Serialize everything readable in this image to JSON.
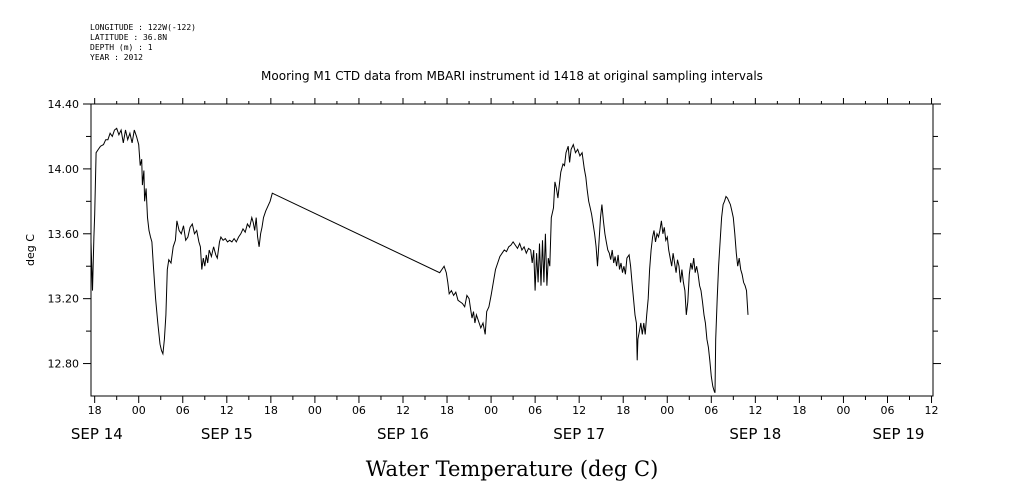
{
  "header": {
    "lines": [
      "LONGITUDE : 122W(-122)",
      "LATITUDE : 36.8N",
      "DEPTH (m) : 1",
      "YEAR : 2012"
    ]
  },
  "chart_data": {
    "type": "line",
    "title": "Mooring M1 CTD data from MBARI instrument id 1418 at original sampling intervals",
    "xlabel": "Water Temperature (deg C)",
    "ylabel": "deg C",
    "ylim": [
      12.6,
      14.4
    ],
    "xlim": [
      17.5,
      132.2
    ],
    "x_unit": "hours from SEP 14 00:00",
    "yticks": [
      12.8,
      13.2,
      13.6,
      14.0,
      14.4
    ],
    "ytick_labels": [
      "12.80",
      "13.20",
      "13.60",
      "14.00",
      "14.40"
    ],
    "xticks": [
      {
        "x": 18,
        "label": "18"
      },
      {
        "x": 24,
        "label": "00"
      },
      {
        "x": 30,
        "label": "06"
      },
      {
        "x": 36,
        "label": "12"
      },
      {
        "x": 42,
        "label": "18"
      },
      {
        "x": 48,
        "label": "00"
      },
      {
        "x": 54,
        "label": "06"
      },
      {
        "x": 60,
        "label": "12"
      },
      {
        "x": 66,
        "label": "18"
      },
      {
        "x": 72,
        "label": "00"
      },
      {
        "x": 78,
        "label": "06"
      },
      {
        "x": 84,
        "label": "12"
      },
      {
        "x": 90,
        "label": "18"
      },
      {
        "x": 96,
        "label": "00"
      },
      {
        "x": 102,
        "label": "06"
      },
      {
        "x": 108,
        "label": "12"
      },
      {
        "x": 114,
        "label": "18"
      },
      {
        "x": 120,
        "label": "00"
      },
      {
        "x": 126,
        "label": "06"
      },
      {
        "x": 132,
        "label": "12"
      }
    ],
    "day_labels": [
      {
        "x": 18.3,
        "label": "SEP 14"
      },
      {
        "x": 36,
        "label": "SEP 15"
      },
      {
        "x": 60,
        "label": "SEP 16"
      },
      {
        "x": 84,
        "label": "SEP 17"
      },
      {
        "x": 108,
        "label": "SEP 18"
      },
      {
        "x": 127.5,
        "label": "SEP 19"
      }
    ],
    "grid": false,
    "series": [
      {
        "color": "#000000",
        "points": [
          [
            17.5,
            13.55
          ],
          [
            17.7,
            13.25
          ],
          [
            17.9,
            13.58
          ],
          [
            18.0,
            13.72
          ],
          [
            18.2,
            14.1
          ],
          [
            18.5,
            14.12
          ],
          [
            18.8,
            14.14
          ],
          [
            19.2,
            14.15
          ],
          [
            19.5,
            14.18
          ],
          [
            19.8,
            14.18
          ],
          [
            20.1,
            14.22
          ],
          [
            20.4,
            14.2
          ],
          [
            20.7,
            14.24
          ],
          [
            21.0,
            14.25
          ],
          [
            21.3,
            14.21
          ],
          [
            21.6,
            14.24
          ],
          [
            21.9,
            14.16
          ],
          [
            22.2,
            14.24
          ],
          [
            22.5,
            14.18
          ],
          [
            22.8,
            14.22
          ],
          [
            23.1,
            14.16
          ],
          [
            23.4,
            14.24
          ],
          [
            23.7,
            14.2
          ],
          [
            24.0,
            14.15
          ],
          [
            24.2,
            14.02
          ],
          [
            24.4,
            14.06
          ],
          [
            24.5,
            13.9
          ],
          [
            24.7,
            13.99
          ],
          [
            24.8,
            13.8
          ],
          [
            25.0,
            13.88
          ],
          [
            25.2,
            13.7
          ],
          [
            25.4,
            13.62
          ],
          [
            25.6,
            13.58
          ],
          [
            25.8,
            13.55
          ],
          [
            26.0,
            13.4
          ],
          [
            26.3,
            13.2
          ],
          [
            26.6,
            13.05
          ],
          [
            26.9,
            12.92
          ],
          [
            27.1,
            12.88
          ],
          [
            27.3,
            12.86
          ],
          [
            27.5,
            12.95
          ],
          [
            27.7,
            13.1
          ],
          [
            27.9,
            13.38
          ],
          [
            28.1,
            13.44
          ],
          [
            28.4,
            13.42
          ],
          [
            28.7,
            13.52
          ],
          [
            29.0,
            13.56
          ],
          [
            29.2,
            13.68
          ],
          [
            29.5,
            13.62
          ],
          [
            29.8,
            13.6
          ],
          [
            30.1,
            13.65
          ],
          [
            30.4,
            13.56
          ],
          [
            30.7,
            13.58
          ],
          [
            31.0,
            13.64
          ],
          [
            31.3,
            13.66
          ],
          [
            31.6,
            13.6
          ],
          [
            31.9,
            13.62
          ],
          [
            32.2,
            13.55
          ],
          [
            32.4,
            13.52
          ],
          [
            32.6,
            13.38
          ],
          [
            32.8,
            13.45
          ],
          [
            33.0,
            13.4
          ],
          [
            33.2,
            13.47
          ],
          [
            33.4,
            13.42
          ],
          [
            33.6,
            13.5
          ],
          [
            33.9,
            13.46
          ],
          [
            34.2,
            13.52
          ],
          [
            34.5,
            13.47
          ],
          [
            34.7,
            13.45
          ],
          [
            35.0,
            13.55
          ],
          [
            35.2,
            13.58
          ],
          [
            35.5,
            13.56
          ],
          [
            35.8,
            13.57
          ],
          [
            36.1,
            13.55
          ],
          [
            36.4,
            13.56
          ],
          [
            36.7,
            13.55
          ],
          [
            37.0,
            13.57
          ],
          [
            37.3,
            13.55
          ],
          [
            37.6,
            13.58
          ],
          [
            37.9,
            13.6
          ],
          [
            38.2,
            13.63
          ],
          [
            38.5,
            13.61
          ],
          [
            38.8,
            13.66
          ],
          [
            39.1,
            13.64
          ],
          [
            39.4,
            13.7
          ],
          [
            39.6,
            13.67
          ],
          [
            39.8,
            13.62
          ],
          [
            40.0,
            13.7
          ],
          [
            40.2,
            13.58
          ],
          [
            40.4,
            13.52
          ],
          [
            40.6,
            13.6
          ],
          [
            40.8,
            13.64
          ],
          [
            41.0,
            13.7
          ],
          [
            41.3,
            13.74
          ],
          [
            41.6,
            13.77
          ],
          [
            41.9,
            13.8
          ],
          [
            42.2,
            13.85
          ],
          [
            65.0,
            13.36
          ],
          [
            65.3,
            13.38
          ],
          [
            65.6,
            13.4
          ],
          [
            65.9,
            13.36
          ],
          [
            66.1,
            13.3
          ],
          [
            66.3,
            13.23
          ],
          [
            66.6,
            13.25
          ],
          [
            66.9,
            13.22
          ],
          [
            67.2,
            13.24
          ],
          [
            67.5,
            13.19
          ],
          [
            67.8,
            13.18
          ],
          [
            68.1,
            13.17
          ],
          [
            68.4,
            13.15
          ],
          [
            68.7,
            13.22
          ],
          [
            69.0,
            13.2
          ],
          [
            69.2,
            13.14
          ],
          [
            69.4,
            13.08
          ],
          [
            69.6,
            13.12
          ],
          [
            69.8,
            13.05
          ],
          [
            70.0,
            13.1
          ],
          [
            70.3,
            13.06
          ],
          [
            70.6,
            13.02
          ],
          [
            70.9,
            13.05
          ],
          [
            71.2,
            12.98
          ],
          [
            71.4,
            13.12
          ],
          [
            71.7,
            13.15
          ],
          [
            72.0,
            13.22
          ],
          [
            72.3,
            13.3
          ],
          [
            72.6,
            13.38
          ],
          [
            72.9,
            13.42
          ],
          [
            73.2,
            13.46
          ],
          [
            73.5,
            13.48
          ],
          [
            73.8,
            13.5
          ],
          [
            74.1,
            13.49
          ],
          [
            74.4,
            13.52
          ],
          [
            74.7,
            13.53
          ],
          [
            75.0,
            13.55
          ],
          [
            75.3,
            13.53
          ],
          [
            75.6,
            13.51
          ],
          [
            75.9,
            13.54
          ],
          [
            76.2,
            13.5
          ],
          [
            76.5,
            13.52
          ],
          [
            76.8,
            13.48
          ],
          [
            77.1,
            13.51
          ],
          [
            77.4,
            13.5
          ],
          [
            77.6,
            13.42
          ],
          [
            77.8,
            13.5
          ],
          [
            78.0,
            13.25
          ],
          [
            78.2,
            13.48
          ],
          [
            78.4,
            13.3
          ],
          [
            78.6,
            13.54
          ],
          [
            78.8,
            13.28
          ],
          [
            79.0,
            13.56
          ],
          [
            79.2,
            13.3
          ],
          [
            79.4,
            13.6
          ],
          [
            79.6,
            13.28
          ],
          [
            79.8,
            13.45
          ],
          [
            80.0,
            13.4
          ],
          [
            80.2,
            13.7
          ],
          [
            80.5,
            13.76
          ],
          [
            80.7,
            13.92
          ],
          [
            80.9,
            13.88
          ],
          [
            81.1,
            13.82
          ],
          [
            81.3,
            13.9
          ],
          [
            81.5,
            13.98
          ],
          [
            81.8,
            14.03
          ],
          [
            82.0,
            14.02
          ],
          [
            82.2,
            14.1
          ],
          [
            82.5,
            14.14
          ],
          [
            82.7,
            14.04
          ],
          [
            82.9,
            14.12
          ],
          [
            83.2,
            14.15
          ],
          [
            83.5,
            14.1
          ],
          [
            83.8,
            14.12
          ],
          [
            84.1,
            14.08
          ],
          [
            84.4,
            14.1
          ],
          [
            84.7,
            14.0
          ],
          [
            84.9,
            13.95
          ],
          [
            85.1,
            13.87
          ],
          [
            85.3,
            13.8
          ],
          [
            85.5,
            13.76
          ],
          [
            85.7,
            13.72
          ],
          [
            85.9,
            13.66
          ],
          [
            86.1,
            13.6
          ],
          [
            86.3,
            13.52
          ],
          [
            86.5,
            13.4
          ],
          [
            86.7,
            13.55
          ],
          [
            86.9,
            13.7
          ],
          [
            87.1,
            13.78
          ],
          [
            87.3,
            13.68
          ],
          [
            87.5,
            13.6
          ],
          [
            87.7,
            13.55
          ],
          [
            87.9,
            13.5
          ],
          [
            88.1,
            13.48
          ],
          [
            88.3,
            13.44
          ],
          [
            88.5,
            13.5
          ],
          [
            88.7,
            13.42
          ],
          [
            88.9,
            13.46
          ],
          [
            89.1,
            13.4
          ],
          [
            89.3,
            13.47
          ],
          [
            89.5,
            13.38
          ],
          [
            89.7,
            13.42
          ],
          [
            89.9,
            13.36
          ],
          [
            90.1,
            13.4
          ],
          [
            90.3,
            13.35
          ],
          [
            90.5,
            13.45
          ],
          [
            90.8,
            13.47
          ],
          [
            91.0,
            13.4
          ],
          [
            91.2,
            13.3
          ],
          [
            91.4,
            13.2
          ],
          [
            91.6,
            13.1
          ],
          [
            91.8,
            13.05
          ],
          [
            91.9,
            12.82
          ],
          [
            92.0,
            12.95
          ],
          [
            92.2,
            13.0
          ],
          [
            92.4,
            13.05
          ],
          [
            92.6,
            12.98
          ],
          [
            92.8,
            13.05
          ],
          [
            93.0,
            12.98
          ],
          [
            93.2,
            13.1
          ],
          [
            93.4,
            13.2
          ],
          [
            93.6,
            13.38
          ],
          [
            93.8,
            13.5
          ],
          [
            94.0,
            13.58
          ],
          [
            94.2,
            13.62
          ],
          [
            94.4,
            13.55
          ],
          [
            94.6,
            13.6
          ],
          [
            94.8,
            13.58
          ],
          [
            95.0,
            13.62
          ],
          [
            95.2,
            13.68
          ],
          [
            95.4,
            13.6
          ],
          [
            95.6,
            13.64
          ],
          [
            95.8,
            13.56
          ],
          [
            96.0,
            13.58
          ],
          [
            96.2,
            13.5
          ],
          [
            96.4,
            13.45
          ],
          [
            96.6,
            13.4
          ],
          [
            96.8,
            13.48
          ],
          [
            97.0,
            13.42
          ],
          [
            97.2,
            13.36
          ],
          [
            97.4,
            13.44
          ],
          [
            97.6,
            13.4
          ],
          [
            97.8,
            13.3
          ],
          [
            98.0,
            13.38
          ],
          [
            98.2,
            13.3
          ],
          [
            98.4,
            13.25
          ],
          [
            98.6,
            13.1
          ],
          [
            98.8,
            13.18
          ],
          [
            99.0,
            13.35
          ],
          [
            99.2,
            13.42
          ],
          [
            99.4,
            13.38
          ],
          [
            99.6,
            13.45
          ],
          [
            99.8,
            13.36
          ],
          [
            100.0,
            13.4
          ],
          [
            100.2,
            13.35
          ],
          [
            100.4,
            13.28
          ],
          [
            100.6,
            13.25
          ],
          [
            100.8,
            13.18
          ],
          [
            101.0,
            13.1
          ],
          [
            101.2,
            13.05
          ],
          [
            101.4,
            12.95
          ],
          [
            101.6,
            12.9
          ],
          [
            101.8,
            12.82
          ],
          [
            102.0,
            12.72
          ],
          [
            102.2,
            12.66
          ],
          [
            102.4,
            12.63
          ],
          [
            102.5,
            12.62
          ],
          [
            102.6,
            12.95
          ],
          [
            102.8,
            13.2
          ],
          [
            103.0,
            13.4
          ],
          [
            103.2,
            13.55
          ],
          [
            103.4,
            13.7
          ],
          [
            103.6,
            13.78
          ],
          [
            103.8,
            13.8
          ],
          [
            104.0,
            13.83
          ],
          [
            104.2,
            13.82
          ],
          [
            104.4,
            13.8
          ],
          [
            104.6,
            13.78
          ],
          [
            104.8,
            13.74
          ],
          [
            105.0,
            13.7
          ],
          [
            105.2,
            13.6
          ],
          [
            105.4,
            13.48
          ],
          [
            105.6,
            13.4
          ],
          [
            105.8,
            13.45
          ],
          [
            106.0,
            13.38
          ],
          [
            106.2,
            13.35
          ],
          [
            106.4,
            13.3
          ],
          [
            106.6,
            13.28
          ],
          [
            106.8,
            13.25
          ],
          [
            107.0,
            13.1
          ]
        ]
      }
    ]
  }
}
